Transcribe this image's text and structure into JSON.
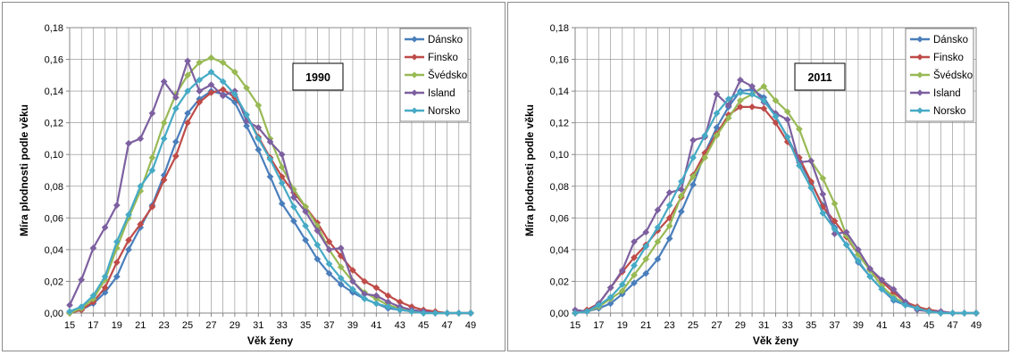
{
  "chart_data": [
    {
      "type": "line",
      "title": "",
      "year_label": "1990",
      "xlabel": "Věk ženy",
      "ylabel": "Míra plodnosti podle věku",
      "xlim": [
        15,
        49
      ],
      "ylim": [
        0,
        0.18
      ],
      "x": [
        15,
        16,
        17,
        18,
        19,
        20,
        21,
        22,
        23,
        24,
        25,
        26,
        27,
        28,
        29,
        30,
        31,
        32,
        33,
        34,
        35,
        36,
        37,
        38,
        39,
        40,
        41,
        42,
        43,
        44,
        45,
        46,
        47,
        48,
        49
      ],
      "x_tick_labels": [
        "15",
        "17",
        "19",
        "21",
        "23",
        "25",
        "27",
        "29",
        "31",
        "33",
        "35",
        "37",
        "39",
        "41",
        "43",
        "45",
        "47",
        "49"
      ],
      "y_tick_labels": [
        "0,00",
        "0,02",
        "0,04",
        "0,06",
        "0,08",
        "0,10",
        "0,12",
        "0,14",
        "0,16",
        "0,18"
      ],
      "grid": true,
      "legend_position": "top-right",
      "series": [
        {
          "name": "Dánsko",
          "color": "#4a7ebb",
          "values": [
            0.0,
            0.002,
            0.006,
            0.013,
            0.023,
            0.04,
            0.054,
            0.068,
            0.087,
            0.108,
            0.126,
            0.135,
            0.14,
            0.138,
            0.133,
            0.118,
            0.103,
            0.086,
            0.069,
            0.058,
            0.046,
            0.034,
            0.025,
            0.018,
            0.013,
            0.009,
            0.006,
            0.003,
            0.002,
            0.001,
            0.0,
            0.0,
            0.0,
            0.0,
            0.0
          ]
        },
        {
          "name": "Finsko",
          "color": "#be4b48",
          "values": [
            0.0,
            0.002,
            0.007,
            0.016,
            0.032,
            0.046,
            0.056,
            0.067,
            0.084,
            0.099,
            0.12,
            0.133,
            0.139,
            0.141,
            0.136,
            0.125,
            0.111,
            0.098,
            0.086,
            0.076,
            0.067,
            0.057,
            0.045,
            0.036,
            0.027,
            0.02,
            0.016,
            0.011,
            0.007,
            0.004,
            0.002,
            0.001,
            0.0,
            0.0,
            0.0
          ]
        },
        {
          "name": "Švédsko",
          "color": "#98b954",
          "values": [
            0.0,
            0.003,
            0.009,
            0.021,
            0.041,
            0.06,
            0.077,
            0.098,
            0.12,
            0.138,
            0.15,
            0.158,
            0.161,
            0.158,
            0.152,
            0.142,
            0.131,
            0.11,
            0.092,
            0.078,
            0.067,
            0.055,
            0.04,
            0.029,
            0.02,
            0.013,
            0.009,
            0.005,
            0.003,
            0.001,
            0.0,
            0.0,
            0.0,
            0.0,
            0.0
          ]
        },
        {
          "name": "Island",
          "color": "#7d60a0",
          "values": [
            0.005,
            0.021,
            0.041,
            0.054,
            0.068,
            0.107,
            0.11,
            0.126,
            0.146,
            0.136,
            0.159,
            0.14,
            0.144,
            0.137,
            0.14,
            0.121,
            0.117,
            0.108,
            0.1,
            0.073,
            0.064,
            0.052,
            0.04,
            0.041,
            0.02,
            0.012,
            0.011,
            0.007,
            0.004,
            0.002,
            0.001,
            0.0,
            0.0,
            0.0,
            0.0
          ]
        },
        {
          "name": "Norsko",
          "color": "#46aac5",
          "values": [
            0.001,
            0.004,
            0.011,
            0.023,
            0.045,
            0.062,
            0.08,
            0.09,
            0.11,
            0.129,
            0.14,
            0.147,
            0.152,
            0.146,
            0.138,
            0.125,
            0.11,
            0.097,
            0.082,
            0.067,
            0.055,
            0.043,
            0.031,
            0.022,
            0.015,
            0.009,
            0.006,
            0.004,
            0.002,
            0.001,
            0.0,
            0.0,
            0.0,
            0.0,
            0.0
          ]
        }
      ]
    },
    {
      "type": "line",
      "title": "",
      "year_label": "2011",
      "xlabel": "Věk ženy",
      "ylabel": "Míra plodnosti podle věku",
      "xlim": [
        15,
        49
      ],
      "ylim": [
        0,
        0.18
      ],
      "x": [
        15,
        16,
        17,
        18,
        19,
        20,
        21,
        22,
        23,
        24,
        25,
        26,
        27,
        28,
        29,
        30,
        31,
        32,
        33,
        34,
        35,
        36,
        37,
        38,
        39,
        40,
        41,
        42,
        43,
        44,
        45,
        46,
        47,
        48,
        49
      ],
      "x_tick_labels": [
        "15",
        "17",
        "19",
        "21",
        "23",
        "25",
        "27",
        "29",
        "31",
        "33",
        "35",
        "37",
        "39",
        "41",
        "43",
        "45",
        "47",
        "49"
      ],
      "y_tick_labels": [
        "0,00",
        "0,02",
        "0,04",
        "0,06",
        "0,08",
        "0,10",
        "0,12",
        "0,14",
        "0,16",
        "0,18"
      ],
      "grid": true,
      "legend_position": "top-right",
      "series": [
        {
          "name": "Dánsko",
          "color": "#4a7ebb",
          "values": [
            0.0,
            0.001,
            0.003,
            0.006,
            0.012,
            0.019,
            0.025,
            0.034,
            0.047,
            0.064,
            0.081,
            0.101,
            0.117,
            0.13,
            0.14,
            0.141,
            0.136,
            0.124,
            0.111,
            0.096,
            0.082,
            0.068,
            0.054,
            0.043,
            0.032,
            0.023,
            0.015,
            0.008,
            0.005,
            0.003,
            0.001,
            0.0,
            0.0,
            0.0,
            0.0
          ]
        },
        {
          "name": "Finsko",
          "color": "#be4b48",
          "values": [
            0.0,
            0.002,
            0.006,
            0.016,
            0.026,
            0.035,
            0.043,
            0.052,
            0.06,
            0.073,
            0.087,
            0.101,
            0.113,
            0.125,
            0.13,
            0.13,
            0.129,
            0.12,
            0.108,
            0.098,
            0.083,
            0.067,
            0.058,
            0.048,
            0.037,
            0.028,
            0.02,
            0.013,
            0.007,
            0.004,
            0.002,
            0.001,
            0.0,
            0.0,
            0.0
          ]
        },
        {
          "name": "Švédsko",
          "color": "#98b954",
          "values": [
            0.0,
            0.001,
            0.004,
            0.009,
            0.014,
            0.024,
            0.034,
            0.045,
            0.055,
            0.074,
            0.086,
            0.098,
            0.112,
            0.123,
            0.134,
            0.138,
            0.143,
            0.134,
            0.127,
            0.116,
            0.096,
            0.085,
            0.069,
            0.049,
            0.037,
            0.027,
            0.017,
            0.01,
            0.006,
            0.003,
            0.001,
            0.0,
            0.0,
            0.0,
            0.0
          ]
        },
        {
          "name": "Island",
          "color": "#7d60a0",
          "values": [
            0.002,
            0.001,
            0.006,
            0.016,
            0.027,
            0.045,
            0.051,
            0.065,
            0.076,
            0.078,
            0.109,
            0.111,
            0.138,
            0.131,
            0.147,
            0.143,
            0.133,
            0.126,
            0.122,
            0.095,
            0.096,
            0.075,
            0.05,
            0.051,
            0.04,
            0.028,
            0.021,
            0.015,
            0.007,
            0.002,
            0.001,
            0.001,
            0.0,
            0.0,
            0.0
          ]
        },
        {
          "name": "Norsko",
          "color": "#46aac5",
          "values": [
            0.0,
            0.001,
            0.005,
            0.01,
            0.018,
            0.03,
            0.042,
            0.054,
            0.068,
            0.083,
            0.098,
            0.112,
            0.126,
            0.135,
            0.139,
            0.138,
            0.134,
            0.124,
            0.111,
            0.093,
            0.079,
            0.063,
            0.053,
            0.043,
            0.033,
            0.023,
            0.015,
            0.009,
            0.005,
            0.003,
            0.001,
            0.0,
            0.0,
            0.0,
            0.0
          ]
        }
      ]
    }
  ]
}
